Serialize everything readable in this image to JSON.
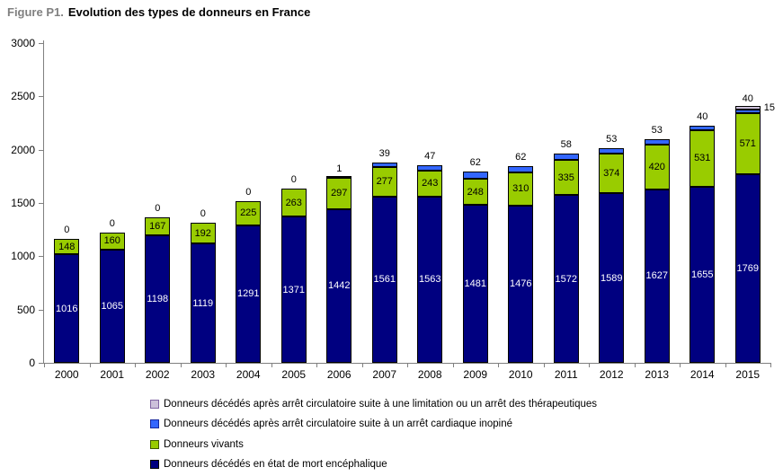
{
  "title": {
    "prefix": "Figure P1.",
    "text": "Evolution des types de donneurs en France"
  },
  "chart_data": {
    "type": "bar",
    "stacked": true,
    "title": "Evolution des types de donneurs en France",
    "categories": [
      "2000",
      "2001",
      "2002",
      "2003",
      "2004",
      "2005",
      "2006",
      "2007",
      "2008",
      "2009",
      "2010",
      "2011",
      "2012",
      "2013",
      "2014",
      "2015"
    ],
    "series": [
      {
        "name": "Donneurs décédés en état de mort encéphalique",
        "color": "#000080",
        "swatch_border": "#000000",
        "label_style": "inside-white",
        "values": [
          1016,
          1065,
          1198,
          1119,
          1291,
          1371,
          1442,
          1561,
          1563,
          1481,
          1476,
          1572,
          1589,
          1627,
          1655,
          1769
        ]
      },
      {
        "name": "Donneurs vivants",
        "color": "#99CC00",
        "swatch_border": "#3F5A00",
        "label_style": "inside-black",
        "values": [
          148,
          160,
          167,
          192,
          225,
          263,
          297,
          277,
          243,
          248,
          310,
          335,
          374,
          420,
          531,
          571
        ]
      },
      {
        "name": "Donneurs décédés après arrêt circulatoire suite à un arrêt cardiaque inopiné",
        "color": "#3366FF",
        "swatch_border": "#16279E",
        "label_style": "above",
        "values": [
          0,
          0,
          0,
          0,
          0,
          0,
          1,
          39,
          47,
          62,
          62,
          58,
          53,
          53,
          40,
          40
        ]
      },
      {
        "name": "Donneurs décédés après arrêt circulatoire suite à une limitation ou un arrêt des thérapeutiques",
        "color": "#CCC0DA",
        "swatch_border": "#8064A2",
        "label_style": "right",
        "values": [
          null,
          null,
          null,
          null,
          null,
          null,
          null,
          null,
          null,
          null,
          null,
          null,
          null,
          null,
          null,
          15
        ]
      }
    ],
    "ylim": [
      0,
      3000
    ],
    "yticks": [
      0,
      500,
      1000,
      1500,
      2000,
      2500,
      3000
    ],
    "grid": false,
    "legend_position": "bottom",
    "legend_order": [
      3,
      2,
      1,
      0
    ]
  },
  "axis": {
    "color": "#808080"
  }
}
